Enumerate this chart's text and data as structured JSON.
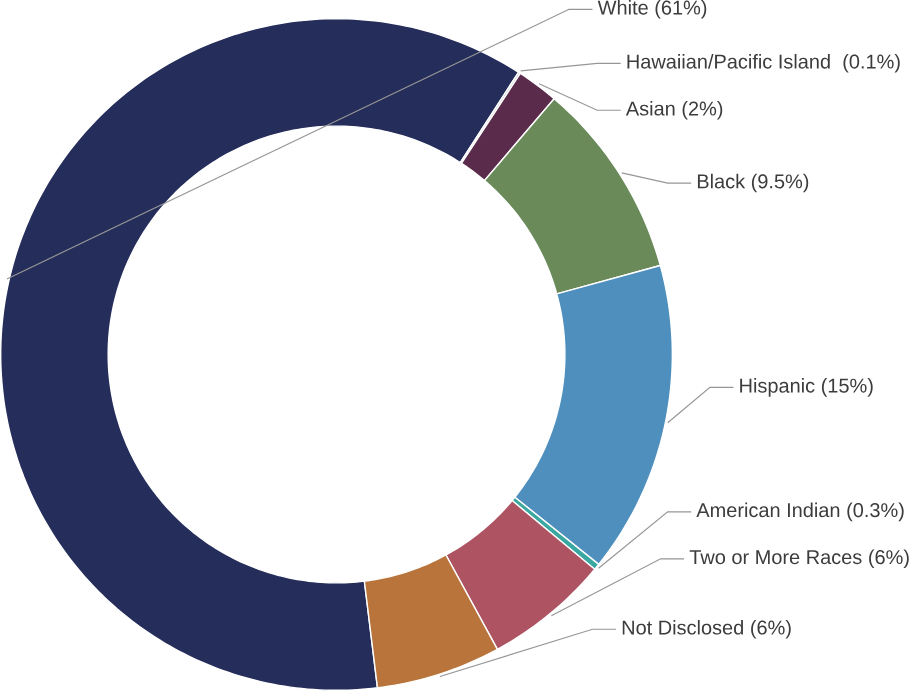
{
  "chart_data": {
    "type": "donut",
    "categories": [
      "White",
      "Hawaiian/Pacific Island ",
      "Asian",
      "Black",
      "Hispanic",
      "American Indian",
      "Two or More Races",
      "Not Disclosed"
    ],
    "values": [
      61,
      0.1,
      2,
      9.5,
      15,
      0.3,
      6,
      6
    ],
    "value_labels": [
      "(61%)",
      "(0.1%)",
      "(2%)",
      "(9.5%)",
      "(15%)",
      "(0.3%)",
      "(6%)",
      "(6%)"
    ],
    "colors": [
      "#252d5a",
      "#c8c8c8",
      "#5a2b4b",
      "#6a8a5a",
      "#4f8fbd",
      "#3aa8a0",
      "#ad5362",
      "#b8743a"
    ]
  }
}
